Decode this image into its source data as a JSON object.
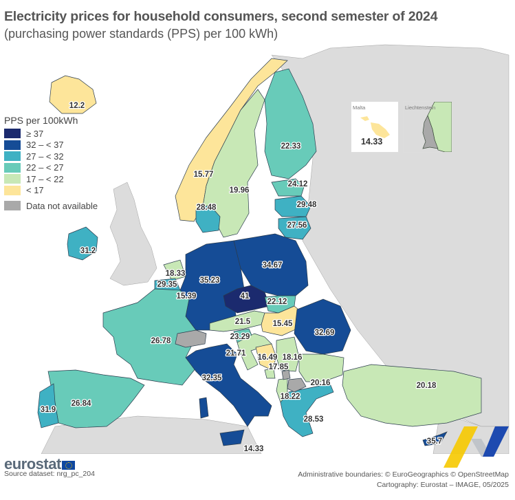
{
  "title": "Electricity prices for household consumers, second semester of 2024",
  "subtitle": "(purchasing power standards (PPS) per 100 kWh)",
  "legend": {
    "title": "PPS per 100kWh",
    "classes": [
      {
        "label": "≥ 37",
        "color": "#1b2a6e"
      },
      {
        "label": "32 – < 37",
        "color": "#154c96"
      },
      {
        "label": "27 – < 32",
        "color": "#3fb1c3"
      },
      {
        "label": "22 – < 27",
        "color": "#68cbb9"
      },
      {
        "label": "17 – < 22",
        "color": "#c8e8b6"
      },
      {
        "label": "< 17",
        "color": "#fde59a"
      }
    ],
    "na": {
      "label": "Data not available",
      "color": "#a9a9a9"
    }
  },
  "insets": [
    {
      "name": "Malta",
      "value": "14.33"
    },
    {
      "name": "Liechtenstein",
      "value": ""
    }
  ],
  "chart_data": {
    "type": "choropleth",
    "title": "Electricity prices for household consumers, second semester of 2024",
    "subtitle": "(purchasing power standards (PPS) per 100 kWh)",
    "unit": "PPS per 100kWh",
    "regions": [
      {
        "country": "Iceland",
        "value": 12.2
      },
      {
        "country": "Norway",
        "value": 15.77
      },
      {
        "country": "Sweden",
        "value": 19.96
      },
      {
        "country": "Finland",
        "value": 22.33
      },
      {
        "country": "Estonia",
        "value": 24.12
      },
      {
        "country": "Latvia",
        "value": 29.48
      },
      {
        "country": "Lithuania",
        "value": 27.56
      },
      {
        "country": "Denmark",
        "value": 28.48
      },
      {
        "country": "Ireland",
        "value": 31.2
      },
      {
        "country": "Netherlands",
        "value": 18.33
      },
      {
        "country": "Belgium",
        "value": 29.35
      },
      {
        "country": "Luxembourg",
        "value": 15.39
      },
      {
        "country": "Germany",
        "value": 35.23
      },
      {
        "country": "Poland",
        "value": 34.67
      },
      {
        "country": "Czechia",
        "value": 41
      },
      {
        "country": "Slovakia",
        "value": 22.12
      },
      {
        "country": "Austria",
        "value": 21.5
      },
      {
        "country": "Hungary",
        "value": 15.45
      },
      {
        "country": "Romania",
        "value": 32.69
      },
      {
        "country": "Slovenia",
        "value": 23.29
      },
      {
        "country": "Croatia",
        "value": 21.71
      },
      {
        "country": "Bosnia and Herzegovina",
        "value": 16.49
      },
      {
        "country": "Serbia",
        "value": 18.16
      },
      {
        "country": "Montenegro",
        "value": 17.85
      },
      {
        "country": "Bulgaria",
        "value": 20.16
      },
      {
        "country": "Albania",
        "value": 18.22
      },
      {
        "country": "Greece",
        "value": 28.53
      },
      {
        "country": "Türkiye",
        "value": 20.18
      },
      {
        "country": "Cyprus",
        "value": 35.7
      },
      {
        "country": "France",
        "value": 26.78
      },
      {
        "country": "Spain",
        "value": 26.84
      },
      {
        "country": "Portugal",
        "value": 31.9
      },
      {
        "country": "Italy",
        "value": 32.35
      },
      {
        "country": "Malta",
        "value": 14.33
      },
      {
        "country": "Switzerland",
        "value": null
      },
      {
        "country": "United Kingdom",
        "value": null
      },
      {
        "country": "Liechtenstein",
        "value": null
      },
      {
        "country": "North Macedonia",
        "value": null
      },
      {
        "country": "Kosovo",
        "value": null
      }
    ],
    "classes": [
      {
        "min": 37,
        "max": null,
        "label": "≥ 37"
      },
      {
        "min": 32,
        "max": 37,
        "label": "32 – < 37"
      },
      {
        "min": 27,
        "max": 32,
        "label": "27 – < 32"
      },
      {
        "min": 22,
        "max": 27,
        "label": "22 – < 27"
      },
      {
        "min": 17,
        "max": 22,
        "label": "17 – < 22"
      },
      {
        "min": null,
        "max": 17,
        "label": "< 17"
      }
    ]
  },
  "footer": {
    "logo": "eurostat",
    "source": "Source dataset: nrg_pc_204",
    "credit1": "Administrative boundaries: © EuroGeographics © OpenStreetMap",
    "credit2": "Cartography: Eurostat – IMAGE, 05/2025"
  }
}
